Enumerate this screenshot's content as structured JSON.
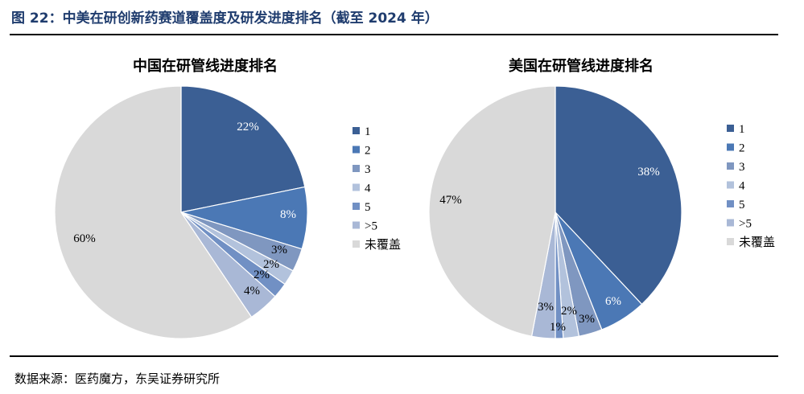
{
  "figure": {
    "title": "图 22：中美在研创新药赛道覆盖度及研发进度排名（截至 2024 年）",
    "source": "数据来源：医药魔方，东吴证券研究所"
  },
  "colors": {
    "rank1": "#3b5f94",
    "rank2": "#4b78b5",
    "rank3": "#7f97c0",
    "rank4": "#b2c2dc",
    "rank5": "#7190c4",
    "rank_gt5": "#a9b8d6",
    "uncovered": "#d9d9d9"
  },
  "chart_data": [
    {
      "type": "pie",
      "title": "中国在研管线进度排名",
      "categories": [
        "1",
        "2",
        "3",
        "4",
        "5",
        ">5",
        "未覆盖"
      ],
      "values": [
        22,
        8,
        3,
        2,
        2,
        4,
        60
      ],
      "labels": [
        "22%",
        "8%",
        "3%",
        "2%",
        "2%",
        "4%",
        "60%"
      ],
      "legend": "right"
    },
    {
      "type": "pie",
      "title": "美国在研管线进度排名",
      "categories": [
        "1",
        "2",
        "3",
        "4",
        "5",
        ">5",
        "未覆盖"
      ],
      "values": [
        38,
        6,
        3,
        2,
        1,
        3,
        47
      ],
      "labels": [
        "38%",
        "6%",
        "3%",
        "2%",
        "1%",
        "3%",
        "47%"
      ],
      "legend": "right"
    }
  ]
}
